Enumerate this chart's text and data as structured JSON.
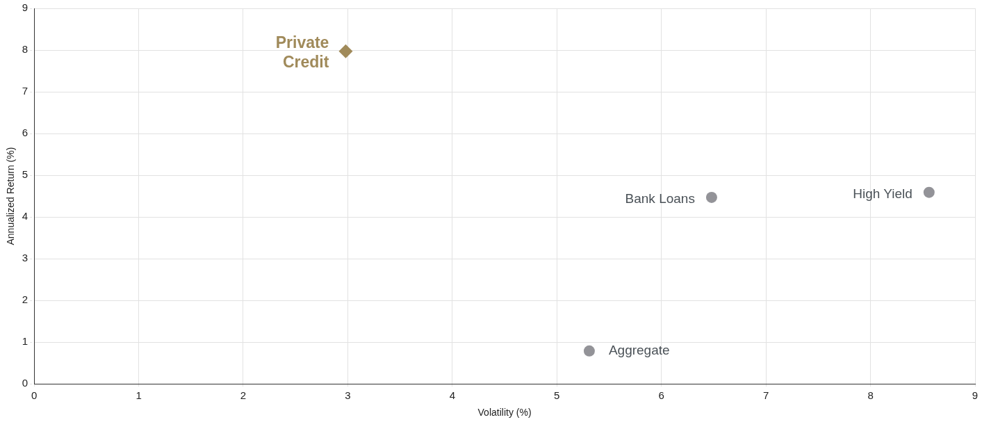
{
  "chart_data": {
    "type": "scatter",
    "xlabel": "Volatility (%)",
    "ylabel": "Annualized Return (%)",
    "xlim": [
      0,
      9
    ],
    "xticks": [
      0,
      1,
      2,
      3,
      4,
      5,
      6,
      7,
      8,
      9
    ],
    "ylim": [
      0,
      9
    ],
    "yticks": [
      0,
      1,
      2,
      3,
      4,
      5,
      6,
      7,
      8,
      9
    ],
    "grid": true,
    "legend": false,
    "line_style": "dashed",
    "series": [
      {
        "name": "Private Credit",
        "color": "#a08a5a",
        "marker": "diamond",
        "x": [
          2.98
        ],
        "values": [
          7.97
        ]
      },
      {
        "name": "Bank Loans",
        "color": "#939398",
        "marker": "circle",
        "x": [
          6.48
        ],
        "values": [
          4.47
        ]
      },
      {
        "name": "High Yield",
        "color": "#939398",
        "marker": "circle",
        "x": [
          8.56
        ],
        "values": [
          4.59
        ]
      },
      {
        "name": "Aggregate",
        "color": "#939398",
        "marker": "circle",
        "x": [
          5.31
        ],
        "values": [
          0.79
        ]
      }
    ]
  }
}
